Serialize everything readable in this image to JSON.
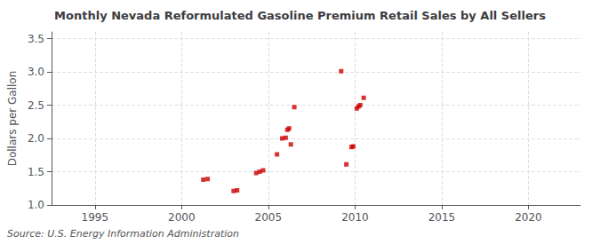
{
  "chart_data": {
    "type": "scatter",
    "title": "Monthly Nevada Reformulated Gasoline Premium Retail Sales by All Sellers",
    "ylabel": "Dollars per Gallon",
    "annotation": "Source: U.S. Energy Information Administration",
    "color": "#cc0000",
    "marker": "square",
    "grid": true,
    "xlim": [
      1992.5,
      2023
    ],
    "ylim": [
      1.0,
      3.6
    ],
    "xticks": [
      1995,
      2000,
      2005,
      2010,
      2015,
      2020
    ],
    "yticks": [
      {
        "value": 1.0,
        "label": "1.0"
      },
      1.5,
      {
        "value": 2.0,
        "label": "2.0"
      },
      2.5,
      {
        "value": 3.0,
        "label": "3.0"
      },
      3.5
    ],
    "x": [
      2001.25,
      2001.5,
      2003.0,
      2003.2,
      2004.3,
      2004.5,
      2004.7,
      2005.5,
      2005.8,
      2006.0,
      2006.1,
      2006.2,
      2006.3,
      2006.5,
      2009.2,
      2009.5,
      2009.8,
      2009.9,
      2010.1,
      2010.2,
      2010.3,
      2010.5
    ],
    "values": [
      1.38,
      1.39,
      1.21,
      1.22,
      1.48,
      1.5,
      1.52,
      1.76,
      2.0,
      2.01,
      2.13,
      2.15,
      1.91,
      2.47,
      3.01,
      1.61,
      1.87,
      1.88,
      2.45,
      2.48,
      2.5,
      2.61
    ]
  }
}
